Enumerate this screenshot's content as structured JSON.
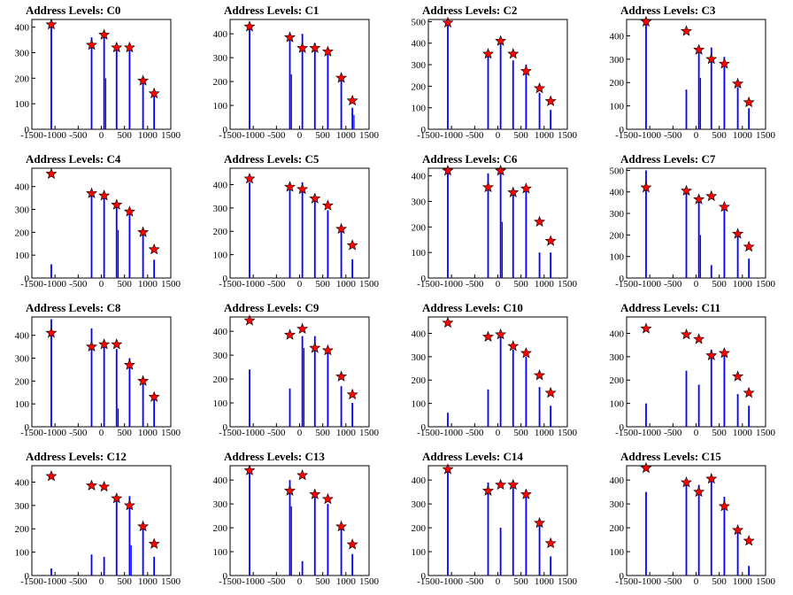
{
  "chart_data": [
    {
      "type": "bar",
      "title": "Address Levels: C0",
      "xlim": [
        -1500,
        1500
      ],
      "ylim": [
        0,
        430
      ],
      "xticks": [
        -1500,
        -1000,
        -500,
        0,
        500,
        1000,
        1500
      ],
      "yticks": [
        0,
        100,
        200,
        300,
        400
      ],
      "x": [
        -1080,
        -210,
        60,
        330,
        610,
        900,
        1140
      ],
      "peak_values": [
        410,
        360,
        370,
        330,
        330,
        190,
        130
      ],
      "star_values": [
        410,
        330,
        370,
        320,
        320,
        190,
        140
      ],
      "secondary_values": [
        0,
        0,
        200,
        0,
        0,
        0,
        0
      ]
    },
    {
      "type": "bar",
      "title": "Address Levels: C1",
      "xlim": [
        -1500,
        1500
      ],
      "ylim": [
        0,
        460
      ],
      "xticks": [
        -1500,
        -1000,
        -500,
        0,
        500,
        1000,
        1500
      ],
      "yticks": [
        0,
        100,
        200,
        300,
        400
      ],
      "x": [
        -1080,
        -210,
        60,
        330,
        610,
        900,
        1140
      ],
      "peak_values": [
        440,
        380,
        400,
        360,
        330,
        210,
        90
      ],
      "star_values": [
        430,
        385,
        340,
        340,
        325,
        215,
        120
      ],
      "secondary_values": [
        0,
        230,
        0,
        0,
        0,
        0,
        60
      ]
    },
    {
      "type": "bar",
      "title": "Address Levels: C2",
      "xlim": [
        -1500,
        1500
      ],
      "ylim": [
        0,
        510
      ],
      "xticks": [
        -1500,
        -1000,
        -500,
        0,
        500,
        1000,
        1500
      ],
      "yticks": [
        0,
        100,
        200,
        300,
        400,
        500
      ],
      "x": [
        -1080,
        -210,
        60,
        330,
        610,
        900,
        1140
      ],
      "peak_values": [
        490,
        350,
        410,
        320,
        300,
        170,
        90
      ],
      "star_values": [
        495,
        350,
        410,
        350,
        270,
        190,
        130
      ],
      "secondary_values": [
        0,
        0,
        0,
        0,
        0,
        0,
        0
      ]
    },
    {
      "type": "bar",
      "title": "Address Levels: C3",
      "xlim": [
        -1500,
        1500
      ],
      "ylim": [
        0,
        470
      ],
      "xticks": [
        -1500,
        -1000,
        -500,
        0,
        500,
        1000,
        1500
      ],
      "yticks": [
        0,
        100,
        200,
        300,
        400
      ],
      "x": [
        -1080,
        -210,
        60,
        330,
        610,
        900,
        1140
      ],
      "peak_values": [
        460,
        170,
        350,
        350,
        310,
        180,
        90
      ],
      "star_values": [
        460,
        420,
        340,
        300,
        280,
        195,
        115
      ],
      "secondary_values": [
        0,
        0,
        220,
        0,
        0,
        0,
        0
      ]
    },
    {
      "type": "bar",
      "title": "Address Levels: C4",
      "xlim": [
        -1500,
        1500
      ],
      "ylim": [
        0,
        480
      ],
      "xticks": [
        -1500,
        -1000,
        -500,
        0,
        500,
        1000,
        1500
      ],
      "yticks": [
        0,
        100,
        200,
        300,
        400
      ],
      "x": [
        -1080,
        -210,
        60,
        330,
        610,
        900,
        1140
      ],
      "peak_values": [
        60,
        380,
        360,
        320,
        300,
        200,
        80
      ],
      "star_values": [
        455,
        370,
        360,
        320,
        290,
        200,
        125
      ],
      "secondary_values": [
        0,
        0,
        0,
        210,
        0,
        0,
        0
      ]
    },
    {
      "type": "bar",
      "title": "Address Levels: C5",
      "xlim": [
        -1500,
        1500
      ],
      "ylim": [
        0,
        470
      ],
      "xticks": [
        -1500,
        -1000,
        -500,
        0,
        500,
        1000,
        1500
      ],
      "yticks": [
        0,
        100,
        200,
        300,
        400
      ],
      "x": [
        -1080,
        -210,
        60,
        330,
        610,
        900,
        1140
      ],
      "peak_values": [
        410,
        380,
        410,
        330,
        290,
        200,
        80
      ],
      "star_values": [
        425,
        390,
        380,
        340,
        310,
        210,
        140
      ],
      "secondary_values": [
        0,
        0,
        0,
        0,
        0,
        0,
        0
      ]
    },
    {
      "type": "bar",
      "title": "Address Levels: C6",
      "xlim": [
        -1500,
        1500
      ],
      "ylim": [
        0,
        430
      ],
      "xticks": [
        -1500,
        -1000,
        -500,
        0,
        500,
        1000,
        1500
      ],
      "yticks": [
        0,
        100,
        200,
        300,
        400
      ],
      "x": [
        -1080,
        -210,
        60,
        330,
        610,
        900,
        1140
      ],
      "peak_values": [
        410,
        410,
        420,
        340,
        350,
        100,
        100
      ],
      "star_values": [
        420,
        355,
        420,
        335,
        350,
        220,
        145
      ],
      "secondary_values": [
        0,
        0,
        220,
        0,
        0,
        0,
        0
      ]
    },
    {
      "type": "bar",
      "title": "Address Levels: C7",
      "xlim": [
        -1500,
        1500
      ],
      "ylim": [
        0,
        510
      ],
      "xticks": [
        -1500,
        -1000,
        -500,
        0,
        500,
        1000,
        1500
      ],
      "yticks": [
        0,
        100,
        200,
        300,
        400,
        500
      ],
      "x": [
        -1080,
        -210,
        60,
        330,
        610,
        900,
        1140
      ],
      "peak_values": [
        500,
        400,
        380,
        60,
        320,
        210,
        90
      ],
      "star_values": [
        420,
        405,
        365,
        380,
        330,
        205,
        145
      ],
      "secondary_values": [
        0,
        0,
        200,
        0,
        0,
        0,
        0
      ]
    },
    {
      "type": "bar",
      "title": "Address Levels: C8",
      "xlim": [
        -1500,
        1500
      ],
      "ylim": [
        0,
        480
      ],
      "xticks": [
        -1500,
        -1000,
        -500,
        0,
        500,
        1000,
        1500
      ],
      "yticks": [
        0,
        100,
        200,
        300,
        400
      ],
      "x": [
        -1080,
        -210,
        60,
        330,
        610,
        900,
        1140
      ],
      "peak_values": [
        470,
        430,
        370,
        340,
        300,
        190,
        130
      ],
      "star_values": [
        410,
        350,
        360,
        360,
        270,
        200,
        130
      ],
      "secondary_values": [
        0,
        0,
        0,
        80,
        0,
        0,
        0
      ]
    },
    {
      "type": "bar",
      "title": "Address Levels: C9",
      "xlim": [
        -1500,
        1500
      ],
      "ylim": [
        0,
        460
      ],
      "xticks": [
        -1500,
        -1000,
        -500,
        0,
        500,
        1000,
        1500
      ],
      "yticks": [
        0,
        100,
        200,
        300,
        400
      ],
      "x": [
        -1080,
        -210,
        60,
        330,
        610,
        900,
        1140
      ],
      "peak_values": [
        240,
        160,
        380,
        380,
        320,
        170,
        100
      ],
      "star_values": [
        445,
        385,
        410,
        330,
        320,
        210,
        135
      ],
      "secondary_values": [
        0,
        0,
        330,
        0,
        0,
        0,
        0
      ]
    },
    {
      "type": "bar",
      "title": "Address Levels: C10",
      "xlim": [
        -1500,
        1500
      ],
      "ylim": [
        0,
        470
      ],
      "xticks": [
        -1500,
        -1000,
        -500,
        0,
        500,
        1000,
        1500
      ],
      "yticks": [
        0,
        100,
        200,
        300,
        400
      ],
      "x": [
        -1080,
        -210,
        60,
        330,
        610,
        900,
        1140
      ],
      "peak_values": [
        60,
        160,
        390,
        330,
        300,
        170,
        90
      ],
      "star_values": [
        445,
        385,
        395,
        345,
        315,
        220,
        145
      ],
      "secondary_values": [
        0,
        0,
        0,
        0,
        0,
        0,
        0
      ]
    },
    {
      "type": "bar",
      "title": "Address Levels: C11",
      "xlim": [
        -1500,
        1500
      ],
      "ylim": [
        0,
        470
      ],
      "xticks": [
        -1500,
        -1000,
        -500,
        0,
        500,
        1000,
        1500
      ],
      "yticks": [
        0,
        100,
        200,
        300,
        400
      ],
      "x": [
        -1080,
        -210,
        60,
        330,
        610,
        900,
        1140
      ],
      "peak_values": [
        100,
        240,
        180,
        330,
        320,
        140,
        90
      ],
      "star_values": [
        420,
        395,
        375,
        305,
        315,
        215,
        145
      ],
      "secondary_values": [
        0,
        0,
        0,
        0,
        0,
        0,
        0
      ]
    },
    {
      "type": "bar",
      "title": "Address Levels: C12",
      "xlim": [
        -1500,
        1500
      ],
      "ylim": [
        0,
        470
      ],
      "xticks": [
        -1500,
        -1000,
        -500,
        0,
        500,
        1000,
        1500
      ],
      "yticks": [
        0,
        100,
        200,
        300,
        400
      ],
      "x": [
        -1080,
        -210,
        60,
        330,
        610,
        900,
        1140
      ],
      "peak_values": [
        30,
        90,
        80,
        320,
        340,
        200,
        80
      ],
      "star_values": [
        425,
        385,
        380,
        330,
        300,
        210,
        135
      ],
      "secondary_values": [
        0,
        0,
        0,
        0,
        130,
        0,
        0
      ]
    },
    {
      "type": "bar",
      "title": "Address Levels: C13",
      "xlim": [
        -1500,
        1500
      ],
      "ylim": [
        0,
        460
      ],
      "xticks": [
        -1500,
        -1000,
        -500,
        0,
        500,
        1000,
        1500
      ],
      "yticks": [
        0,
        100,
        200,
        300,
        400
      ],
      "x": [
        -1080,
        -210,
        60,
        330,
        610,
        900,
        1140
      ],
      "peak_values": [
        440,
        400,
        60,
        340,
        300,
        200,
        90
      ],
      "star_values": [
        440,
        355,
        420,
        340,
        320,
        205,
        130
      ],
      "secondary_values": [
        0,
        290,
        0,
        0,
        0,
        0,
        0
      ]
    },
    {
      "type": "bar",
      "title": "Address Levels: C14",
      "xlim": [
        -1500,
        1500
      ],
      "ylim": [
        0,
        460
      ],
      "xticks": [
        -1500,
        -1000,
        -500,
        0,
        500,
        1000,
        1500
      ],
      "yticks": [
        0,
        100,
        200,
        300,
        400
      ],
      "x": [
        -1080,
        -210,
        60,
        330,
        610,
        900,
        1140
      ],
      "peak_values": [
        440,
        390,
        200,
        380,
        360,
        230,
        80
      ],
      "star_values": [
        445,
        355,
        380,
        380,
        340,
        220,
        135
      ],
      "secondary_values": [
        0,
        0,
        0,
        0,
        0,
        0,
        0
      ]
    },
    {
      "type": "bar",
      "title": "Address Levels: C15",
      "xlim": [
        -1500,
        1500
      ],
      "ylim": [
        0,
        460
      ],
      "xticks": [
        -1500,
        -1000,
        -500,
        0,
        500,
        1000,
        1500
      ],
      "yticks": [
        0,
        100,
        200,
        300,
        400
      ],
      "x": [
        -1080,
        -210,
        60,
        330,
        610,
        900,
        1140
      ],
      "peak_values": [
        350,
        390,
        380,
        400,
        330,
        190,
        40
      ],
      "star_values": [
        450,
        390,
        350,
        405,
        290,
        190,
        145
      ],
      "secondary_values": [
        0,
        0,
        0,
        0,
        0,
        0,
        0
      ]
    }
  ],
  "colors": {
    "bars": "#0000ff",
    "markers": "#ff0000",
    "marker_outline": "#000000",
    "axes": "#000000"
  }
}
